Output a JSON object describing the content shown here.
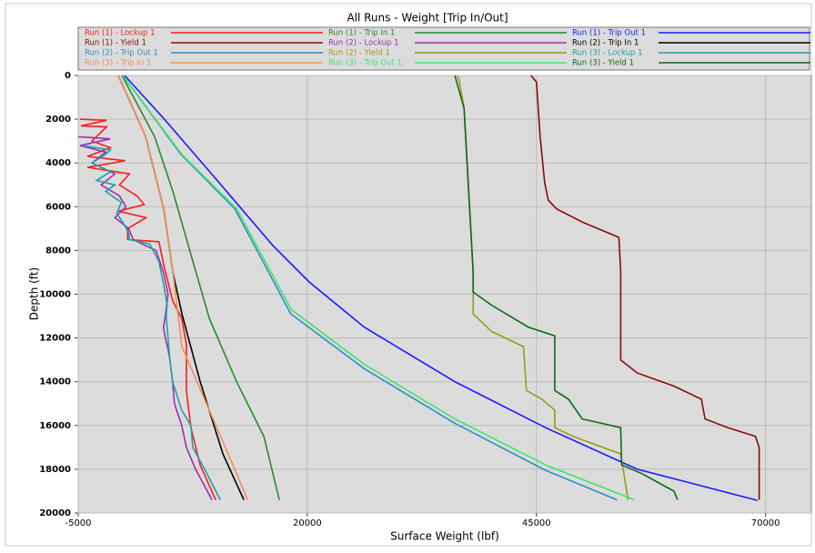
{
  "chart_data": {
    "type": "line",
    "title": "All Runs - Weight [Trip In/Out]",
    "x_label": "Surface Weight (lbf)",
    "y_label": "Depth (ft)",
    "xlim": [
      -5000,
      75000
    ],
    "xticks": [
      -5000,
      20000,
      45000,
      70000
    ],
    "ylim": [
      0,
      20000
    ],
    "yticks": [
      0,
      2000,
      4000,
      6000,
      8000,
      10000,
      12000,
      14000,
      16000,
      18000,
      20000
    ],
    "y_inverted": true,
    "grid": true,
    "legend": "top",
    "series": [
      {
        "name": "Run (1) - Lockup 1",
        "color": "#ff1a1a",
        "y": [
          2000,
          2050,
          2300,
          2350,
          3000,
          3300,
          3700,
          3900,
          4200,
          4500,
          5000,
          5500,
          5900,
          6200,
          6500,
          7000,
          7500,
          7600,
          8600,
          10300,
          11100,
          12300,
          14400,
          16100,
          17800,
          19400
        ],
        "x": [
          -4800,
          -1900,
          -4700,
          -1900,
          -3500,
          -1500,
          -4000,
          100,
          -4000,
          600,
          -500,
          1400,
          2200,
          -600,
          2400,
          400,
          400,
          3800,
          4300,
          5300,
          6300,
          6800,
          6800,
          7300,
          8300,
          10000
        ]
      },
      {
        "name": "Run (1) - Trip In 1",
        "color": "#2a8a2a",
        "y": [
          0,
          2800,
          5300,
          8200,
          11100,
          14000,
          16500,
          19400
        ],
        "x": [
          -230,
          3340,
          5330,
          7310,
          9300,
          12280,
          15260,
          16950
        ]
      },
      {
        "name": "Run (1) - Trip Out 1",
        "color": "#1a1aff",
        "y": [
          0,
          1950,
          4860,
          7780,
          9440,
          11500,
          14000,
          16100,
          18000,
          19420
        ],
        "x": [
          65,
          4300,
          10300,
          16250,
          20200,
          26200,
          36100,
          46000,
          56000,
          69100
        ]
      },
      {
        "name": "Run (1) - Yield 1",
        "color": "#8b0a0a",
        "y": [
          0,
          300,
          2800,
          4900,
          5700,
          6100,
          6700,
          7400,
          9000,
          13000,
          13600,
          14200,
          14800,
          15700,
          16100,
          16500,
          17000,
          19400
        ],
        "x": [
          44400,
          45000,
          45400,
          45900,
          46300,
          47200,
          50000,
          54000,
          54200,
          54200,
          56000,
          60000,
          63000,
          63400,
          65900,
          68900,
          69300,
          69300
        ]
      },
      {
        "name": "Run (2) - Lockup 1",
        "color": "#9b2fb0",
        "y": [
          2800,
          2900,
          3200,
          3500,
          4000,
          4500,
          5000,
          5500,
          6000,
          6500,
          7000,
          7500,
          8000,
          9000,
          10000,
          11000,
          11500,
          12000,
          12500,
          13000,
          14000,
          15000,
          16000,
          17000,
          18000,
          19400
        ],
        "x": [
          -5000,
          -1500,
          -4800,
          -2000,
          -3500,
          -1000,
          -2500,
          -500,
          200,
          -1000,
          500,
          1000,
          3500,
          4300,
          4800,
          4500,
          4300,
          4500,
          4800,
          5000,
          5300,
          5500,
          6300,
          6800,
          7800,
          9600
        ]
      },
      {
        "name": "Run (2) - Trip In 1",
        "color": "#000000",
        "y": [
          0,
          2800,
          6100,
          9000,
          10900,
          14000,
          17300,
          19400
        ],
        "x": [
          -630,
          2350,
          4330,
          5330,
          6320,
          8310,
          10790,
          13070
        ]
      },
      {
        "name": "Run (2) - Trip Out 1",
        "color": "#2e8fc4",
        "y": [
          0,
          3600,
          6100,
          10900,
          13400,
          15900,
          18050,
          19400
        ],
        "x": [
          -130,
          6200,
          12100,
          18200,
          26200,
          36100,
          46000,
          53800
        ]
      },
      {
        "name": "Run (2) - Yield 1",
        "color": "#9a9a1a",
        "y": [
          0,
          300,
          1500,
          9000,
          10900,
          11700,
          12400,
          14400,
          14800,
          15300,
          16100,
          16500,
          17300,
          19400
        ],
        "x": [
          36400,
          36600,
          37100,
          38100,
          38100,
          40100,
          43600,
          43900,
          45600,
          47000,
          47000,
          49000,
          54200,
          55000
        ]
      },
      {
        "name": "Run (3) - Lockup 1",
        "color": "#1fa0a8",
        "y": [
          3200,
          3400,
          3600,
          4000,
          4400,
          4800,
          5000,
          5300,
          5800,
          6300,
          6800,
          7200,
          7500,
          7700,
          8500,
          9500,
          10500,
          11000,
          12000,
          13000,
          14000,
          15300,
          16000,
          17000,
          18000,
          19400
        ],
        "x": [
          -4500,
          -1500,
          -2000,
          -3500,
          -1500,
          -3000,
          -1000,
          -2000,
          -300,
          -800,
          0,
          500,
          600,
          2800,
          3800,
          4300,
          4700,
          4600,
          4800,
          5000,
          5300,
          6300,
          7300,
          7500,
          8800,
          10500
        ]
      },
      {
        "name": "Run (3) - Trip In 1",
        "color": "#f0905a",
        "y": [
          0,
          2800,
          6100,
          9000,
          12400,
          15300,
          18200,
          19400
        ],
        "x": [
          -630,
          2350,
          4330,
          5330,
          6320,
          9300,
          12280,
          13470
        ]
      },
      {
        "name": "Run (3) - Trip Out 1",
        "color": "#3ee66a",
        "y": [
          0,
          3600,
          6100,
          10700,
          13200,
          15700,
          17800,
          19400
        ],
        "x": [
          -130,
          6300,
          12300,
          18250,
          26200,
          36100,
          46000,
          55700
        ]
      },
      {
        "name": "Run (3) - Yield 1",
        "color": "#0d6a1a",
        "y": [
          0,
          300,
          1500,
          9000,
          9900,
          10500,
          11500,
          11900,
          14400,
          14800,
          15700,
          16100,
          17800,
          18200,
          19000,
          19400
        ],
        "x": [
          36100,
          36300,
          37100,
          38100,
          38100,
          40100,
          44100,
          47000,
          47000,
          48500,
          50000,
          54200,
          54300,
          56500,
          60000,
          60400
        ]
      }
    ]
  }
}
